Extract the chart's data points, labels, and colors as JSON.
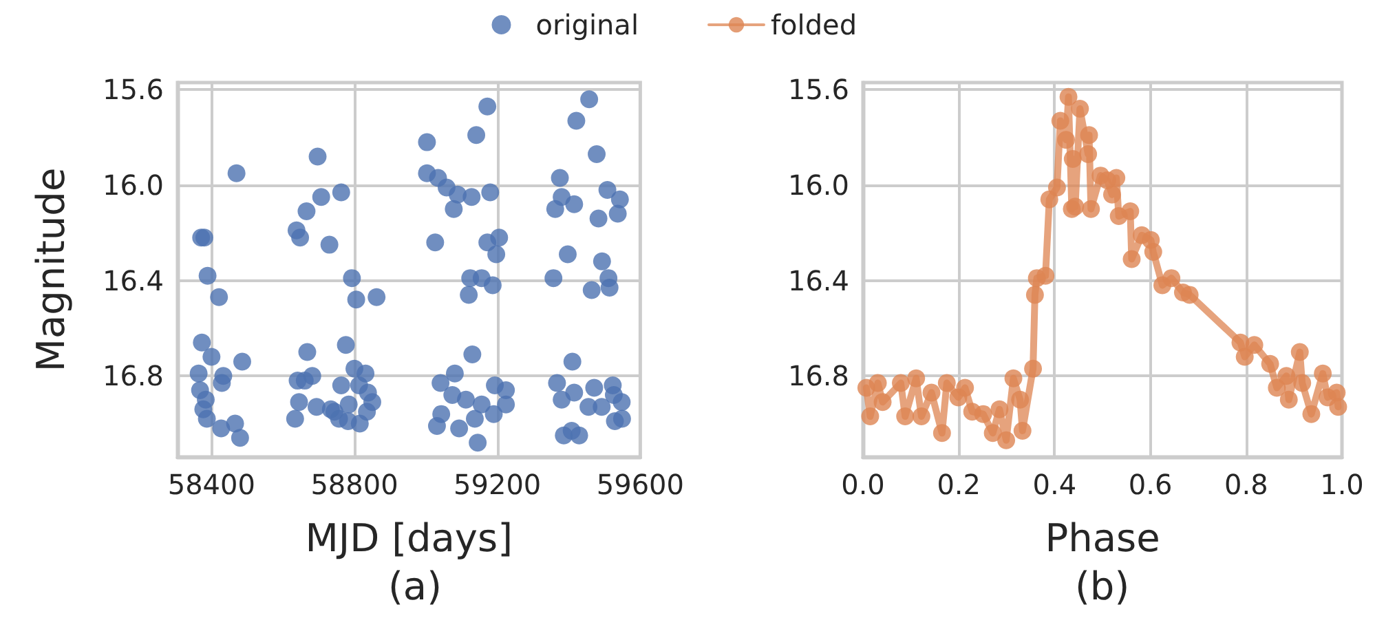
{
  "chart_data": [
    {
      "type": "scatter",
      "xlabel": "MJD [days]",
      "ylabel": "Magnitude",
      "annotations": [
        "(a)"
      ],
      "grid": true,
      "legend": "top",
      "marker": "circle",
      "xlim": [
        58305,
        59600
      ],
      "xticks": [
        58400,
        58800,
        59200,
        59600
      ],
      "ylim": [
        17.14,
        15.57
      ],
      "yticks": [
        15.6,
        {
          "value": 16.0,
          "label": "16.0"
        },
        16.4,
        16.8
      ],
      "series": [
        {
          "name": "original",
          "color": "#4c72b0",
          "x": [
            58470,
            58697,
            58371,
            58380,
            58389,
            58421,
            58763,
            58707,
            58666,
            58638,
            58648,
            58730,
            58793,
            58805,
            58862,
            58373,
            58400,
            58486,
            58364,
            58433,
            58429,
            58368,
            58384,
            58377,
            58387,
            58427,
            58466,
            58480,
            58668,
            58776,
            58641,
            58661,
            58682,
            58645,
            58634,
            58694,
            58734,
            58757,
            58782,
            58815,
            58763,
            58800,
            58831,
            58813,
            58838,
            58850,
            58835,
            58784,
            58744,
            59172,
            59003,
            59141,
            59003,
            59034,
            59058,
            59089,
            59128,
            59180,
            59078,
            59026,
            59172,
            59205,
            59197,
            59124,
            59156,
            59187,
            59120,
            59130,
            59041,
            59081,
            59074,
            59112,
            59193,
            59224,
            59224,
            59156,
            59043,
            59031,
            59093,
            59137,
            59190,
            59145,
            59457,
            59421,
            59478,
            59375,
            59380,
            59362,
            59415,
            59508,
            59543,
            59537,
            59483,
            59397,
            59493,
            59357,
            59511,
            59464,
            59514,
            59410,
            59367,
            59415,
            59380,
            59471,
            59523,
            59526,
            59548,
            59455,
            59492,
            59529,
            59549,
            59386,
            59429,
            59408
          ],
          "values": [
            15.95,
            15.88,
            16.22,
            16.22,
            16.38,
            16.47,
            16.03,
            16.05,
            16.11,
            16.19,
            16.22,
            16.25,
            16.39,
            16.48,
            16.47,
            16.66,
            16.72,
            16.74,
            16.79,
            16.8,
            16.83,
            16.86,
            16.9,
            16.94,
            16.98,
            17.02,
            17.0,
            17.06,
            16.7,
            16.67,
            16.82,
            16.82,
            16.8,
            16.91,
            16.98,
            16.93,
            16.94,
            16.98,
            16.99,
            17.0,
            16.84,
            16.77,
            16.79,
            16.84,
            16.87,
            16.91,
            16.95,
            16.92,
            16.95,
            15.67,
            15.82,
            15.79,
            15.95,
            15.97,
            16.01,
            16.04,
            16.05,
            16.03,
            16.1,
            16.24,
            16.24,
            16.22,
            16.29,
            16.39,
            16.39,
            16.42,
            16.46,
            16.71,
            16.83,
            16.79,
            16.88,
            16.9,
            16.84,
            16.86,
            16.92,
            16.92,
            16.96,
            17.01,
            17.02,
            16.98,
            16.96,
            17.08,
            15.64,
            15.73,
            15.87,
            15.97,
            16.05,
            16.1,
            16.08,
            16.02,
            16.06,
            16.12,
            16.14,
            16.29,
            16.32,
            16.39,
            16.39,
            16.44,
            16.43,
            16.74,
            16.83,
            16.87,
            16.9,
            16.85,
            16.84,
            16.88,
            16.91,
            16.93,
            16.93,
            16.99,
            16.98,
            17.05,
            17.05,
            17.03
          ]
        }
      ]
    },
    {
      "type": "line",
      "xlabel": "Phase",
      "annotations": [
        "(b)"
      ],
      "grid": true,
      "legend": "top",
      "marker": "circle",
      "line_style": "solid",
      "xlim": [
        0,
        1
      ],
      "xticks": [
        {
          "value": 0,
          "label": "0.0"
        },
        0.2,
        0.4,
        0.6,
        0.8,
        {
          "value": 1,
          "label": "1.0"
        }
      ],
      "ylim": [
        17.14,
        15.57
      ],
      "yticks": [
        15.6,
        {
          "value": 16.0,
          "label": "16.0"
        },
        16.4,
        16.8
      ],
      "series": [
        {
          "name": "folded",
          "color": "#dd8452",
          "x": [
            0.007,
            0.015,
            0.031,
            0.041,
            0.079,
            0.088,
            0.111,
            0.122,
            0.143,
            0.165,
            0.175,
            0.199,
            0.213,
            0.228,
            0.251,
            0.271,
            0.285,
            0.299,
            0.314,
            0.328,
            0.333,
            0.355,
            0.359,
            0.363,
            0.381,
            0.389,
            0.405,
            0.412,
            0.424,
            0.429,
            0.436,
            0.438,
            0.443,
            0.453,
            0.47,
            0.472,
            0.476,
            0.496,
            0.51,
            0.52,
            0.529,
            0.534,
            0.558,
            0.561,
            0.582,
            0.601,
            0.606,
            0.625,
            0.644,
            0.668,
            0.682,
            0.788,
            0.797,
            0.817,
            0.85,
            0.864,
            0.884,
            0.889,
            0.912,
            0.917,
            0.936,
            0.96,
            0.97,
            0.989,
            0.992
          ],
          "values": [
            16.85,
            16.97,
            16.83,
            16.91,
            16.83,
            16.97,
            16.81,
            16.97,
            16.87,
            17.04,
            16.83,
            16.89,
            16.85,
            16.95,
            16.96,
            17.04,
            16.94,
            17.07,
            16.81,
            16.9,
            17.03,
            16.77,
            16.46,
            16.39,
            16.38,
            16.06,
            16.01,
            15.73,
            15.81,
            15.63,
            16.1,
            15.89,
            16.09,
            15.68,
            15.87,
            15.79,
            16.1,
            15.96,
            15.98,
            16.04,
            15.97,
            16.13,
            16.11,
            16.31,
            16.21,
            16.23,
            16.28,
            16.42,
            16.39,
            16.45,
            16.46,
            16.66,
            16.72,
            16.67,
            16.75,
            16.85,
            16.8,
            16.9,
            16.7,
            16.83,
            16.96,
            16.79,
            16.89,
            16.87,
            16.93
          ]
        }
      ]
    }
  ]
}
